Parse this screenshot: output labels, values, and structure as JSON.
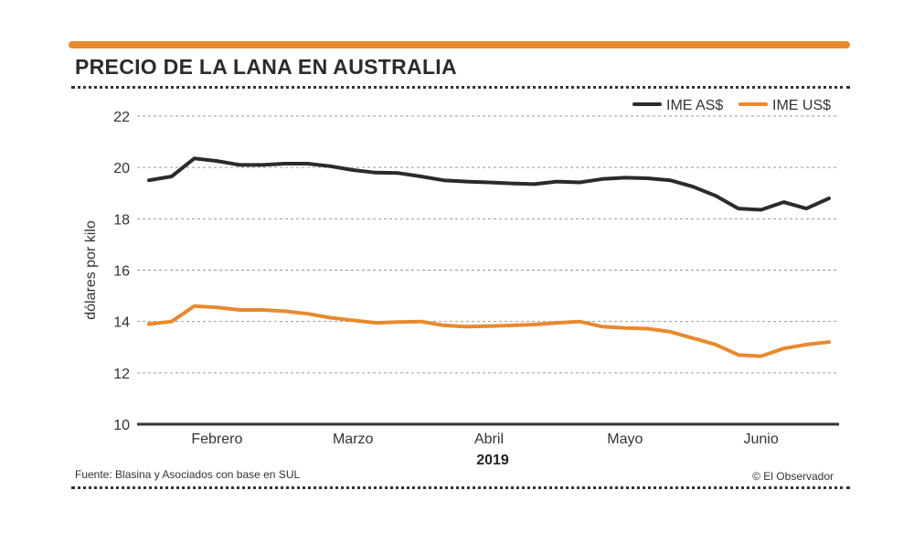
{
  "header": {
    "title": "PRECIO DE LA LANA EN AUSTRALIA"
  },
  "footer": {
    "source": "Fuente: Blasina y Asociados con base en SUL",
    "credit": "© El Observador"
  },
  "colors": {
    "accent_bar": "#e8892e",
    "series_as": "#2b2b2b",
    "series_us": "#e8892e",
    "grid": "#9a9a9a"
  },
  "chart_data": {
    "type": "line",
    "title": "PRECIO DE LA LANA EN AUSTRALIA",
    "ylabel": "dólares por kilo",
    "xlabel": "2019",
    "ylim": [
      10,
      22
    ],
    "yticks": [
      10,
      12,
      14,
      16,
      18,
      20,
      22
    ],
    "xlim": [
      1,
      31
    ],
    "month_labels": [
      {
        "label": "Febrero",
        "pos": 4
      },
      {
        "label": "Marzo",
        "pos": 10
      },
      {
        "label": "Abril",
        "pos": 16
      },
      {
        "label": "Mayo",
        "pos": 22
      },
      {
        "label": "Junio",
        "pos": 28
      }
    ],
    "legend": "top-right",
    "grid": true,
    "series": [
      {
        "name": "IME AS$",
        "color": "#2b2b2b",
        "x": [
          1,
          2,
          3,
          4,
          5,
          6,
          7,
          8,
          9,
          10,
          11,
          12,
          13,
          14,
          15,
          16,
          17,
          18,
          19,
          20,
          21,
          22,
          23,
          24,
          25,
          26,
          27,
          28,
          29,
          30,
          31
        ],
        "values": [
          19.5,
          19.65,
          20.35,
          20.25,
          20.1,
          20.1,
          20.15,
          20.15,
          20.05,
          19.9,
          19.8,
          19.78,
          19.65,
          19.5,
          19.45,
          19.42,
          19.38,
          19.35,
          19.45,
          19.42,
          19.55,
          19.6,
          19.58,
          19.5,
          19.25,
          18.9,
          18.4,
          18.35,
          18.65,
          18.4,
          18.8
        ]
      },
      {
        "name": "IME US$",
        "color": "#e8892e",
        "x": [
          1,
          2,
          3,
          4,
          5,
          6,
          7,
          8,
          9,
          10,
          11,
          12,
          13,
          14,
          15,
          16,
          17,
          18,
          19,
          20,
          21,
          22,
          23,
          24,
          25,
          26,
          27,
          28,
          29,
          30,
          31
        ],
        "values": [
          13.9,
          14.0,
          14.6,
          14.55,
          14.45,
          14.45,
          14.4,
          14.3,
          14.15,
          14.05,
          13.95,
          13.98,
          14.0,
          13.85,
          13.8,
          13.82,
          13.85,
          13.88,
          13.95,
          14.0,
          13.8,
          13.75,
          13.72,
          13.6,
          13.35,
          13.1,
          12.7,
          12.65,
          12.95,
          13.1,
          13.2
        ]
      }
    ]
  }
}
